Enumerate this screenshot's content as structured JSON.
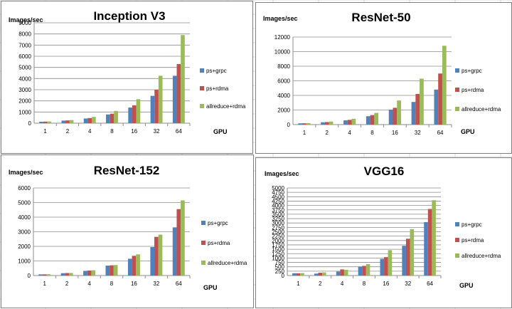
{
  "colors": {
    "ps_grpc": "#4f81bd",
    "ps_rdma": "#c0504d",
    "allreduce_rdma": "#9bbb59",
    "gridline": "#8c8c8c",
    "axis": "#8c8c8c"
  },
  "chart_data": [
    {
      "type": "bar",
      "title": "Inception V3",
      "ylabel": "Images/sec",
      "xlabel": "GPU",
      "categories": [
        "1",
        "2",
        "4",
        "8",
        "16",
        "32",
        "64"
      ],
      "ylim": [
        0,
        9000
      ],
      "yticks": [
        "0",
        "1000",
        "2000",
        "3000",
        "4000",
        "5000",
        "6000",
        "7000",
        "8000",
        "9000"
      ],
      "legend_position": "right",
      "series": [
        {
          "name": "ps+grpc",
          "values": [
            130,
            230,
            420,
            780,
            1400,
            2450,
            4250
          ]
        },
        {
          "name": "ps+rdma",
          "values": [
            140,
            250,
            460,
            850,
            1600,
            3000,
            5300
          ]
        },
        {
          "name": "allreduce+rdma",
          "values": [
            150,
            280,
            560,
            1100,
            2150,
            4250,
            7900
          ]
        }
      ]
    },
    {
      "type": "bar",
      "title": "ResNet-50",
      "ylabel": "Images/sec",
      "xlabel": "GPU",
      "categories": [
        "1",
        "2",
        "4",
        "8",
        "16",
        "32",
        "64"
      ],
      "ylim": [
        0,
        12000
      ],
      "yticks": [
        "0",
        "2000",
        "4000",
        "6000",
        "8000",
        "10000",
        "12000"
      ],
      "legend_position": "right",
      "series": [
        {
          "name": "ps+grpc",
          "values": [
            170,
            320,
            580,
            1150,
            2050,
            3100,
            4800
          ]
        },
        {
          "name": "ps+rdma",
          "values": [
            180,
            350,
            650,
            1300,
            2300,
            4200,
            7000
          ]
        },
        {
          "name": "allreduce+rdma",
          "values": [
            200,
            420,
            800,
            1600,
            3300,
            6300,
            10800
          ]
        }
      ]
    },
    {
      "type": "bar",
      "title": "ResNet-152",
      "ylabel": "Images/sec",
      "xlabel": "GPU",
      "categories": [
        "1",
        "2",
        "4",
        "8",
        "16",
        "32",
        "64"
      ],
      "ylim": [
        0,
        6000
      ],
      "yticks": [
        "0",
        "1000",
        "2000",
        "3000",
        "4000",
        "5000",
        "6000"
      ],
      "legend_position": "right",
      "series": [
        {
          "name": "ps+grpc",
          "values": [
            80,
            160,
            320,
            680,
            1150,
            1950,
            3300
          ]
        },
        {
          "name": "ps+rdma",
          "values": [
            80,
            170,
            340,
            700,
            1350,
            2650,
            4550
          ]
        },
        {
          "name": "allreduce+rdma",
          "values": [
            90,
            175,
            360,
            720,
            1450,
            2800,
            5150
          ]
        }
      ]
    },
    {
      "type": "bar",
      "title": "VGG16",
      "ylabel": "Images/sec",
      "xlabel": "GPU",
      "categories": [
        "1",
        "2",
        "4",
        "8",
        "16",
        "32",
        "64"
      ],
      "ylim": [
        0,
        5000
      ],
      "yticks": [
        "0",
        "250",
        "500",
        "750",
        "1000",
        "1250",
        "1500",
        "1750",
        "2000",
        "2250",
        "2500",
        "2750",
        "3000",
        "3250",
        "3500",
        "3750",
        "4000",
        "4250",
        "4500",
        "4750",
        "5000"
      ],
      "legend_position": "right",
      "series": [
        {
          "name": "ps+grpc",
          "values": [
            130,
            110,
            230,
            500,
            950,
            1700,
            3050
          ]
        },
        {
          "name": "ps+rdma",
          "values": [
            130,
            160,
            350,
            550,
            1050,
            2100,
            3800
          ]
        },
        {
          "name": "allreduce+rdma",
          "values": [
            140,
            180,
            330,
            650,
            1450,
            2650,
            4300
          ]
        }
      ]
    }
  ]
}
